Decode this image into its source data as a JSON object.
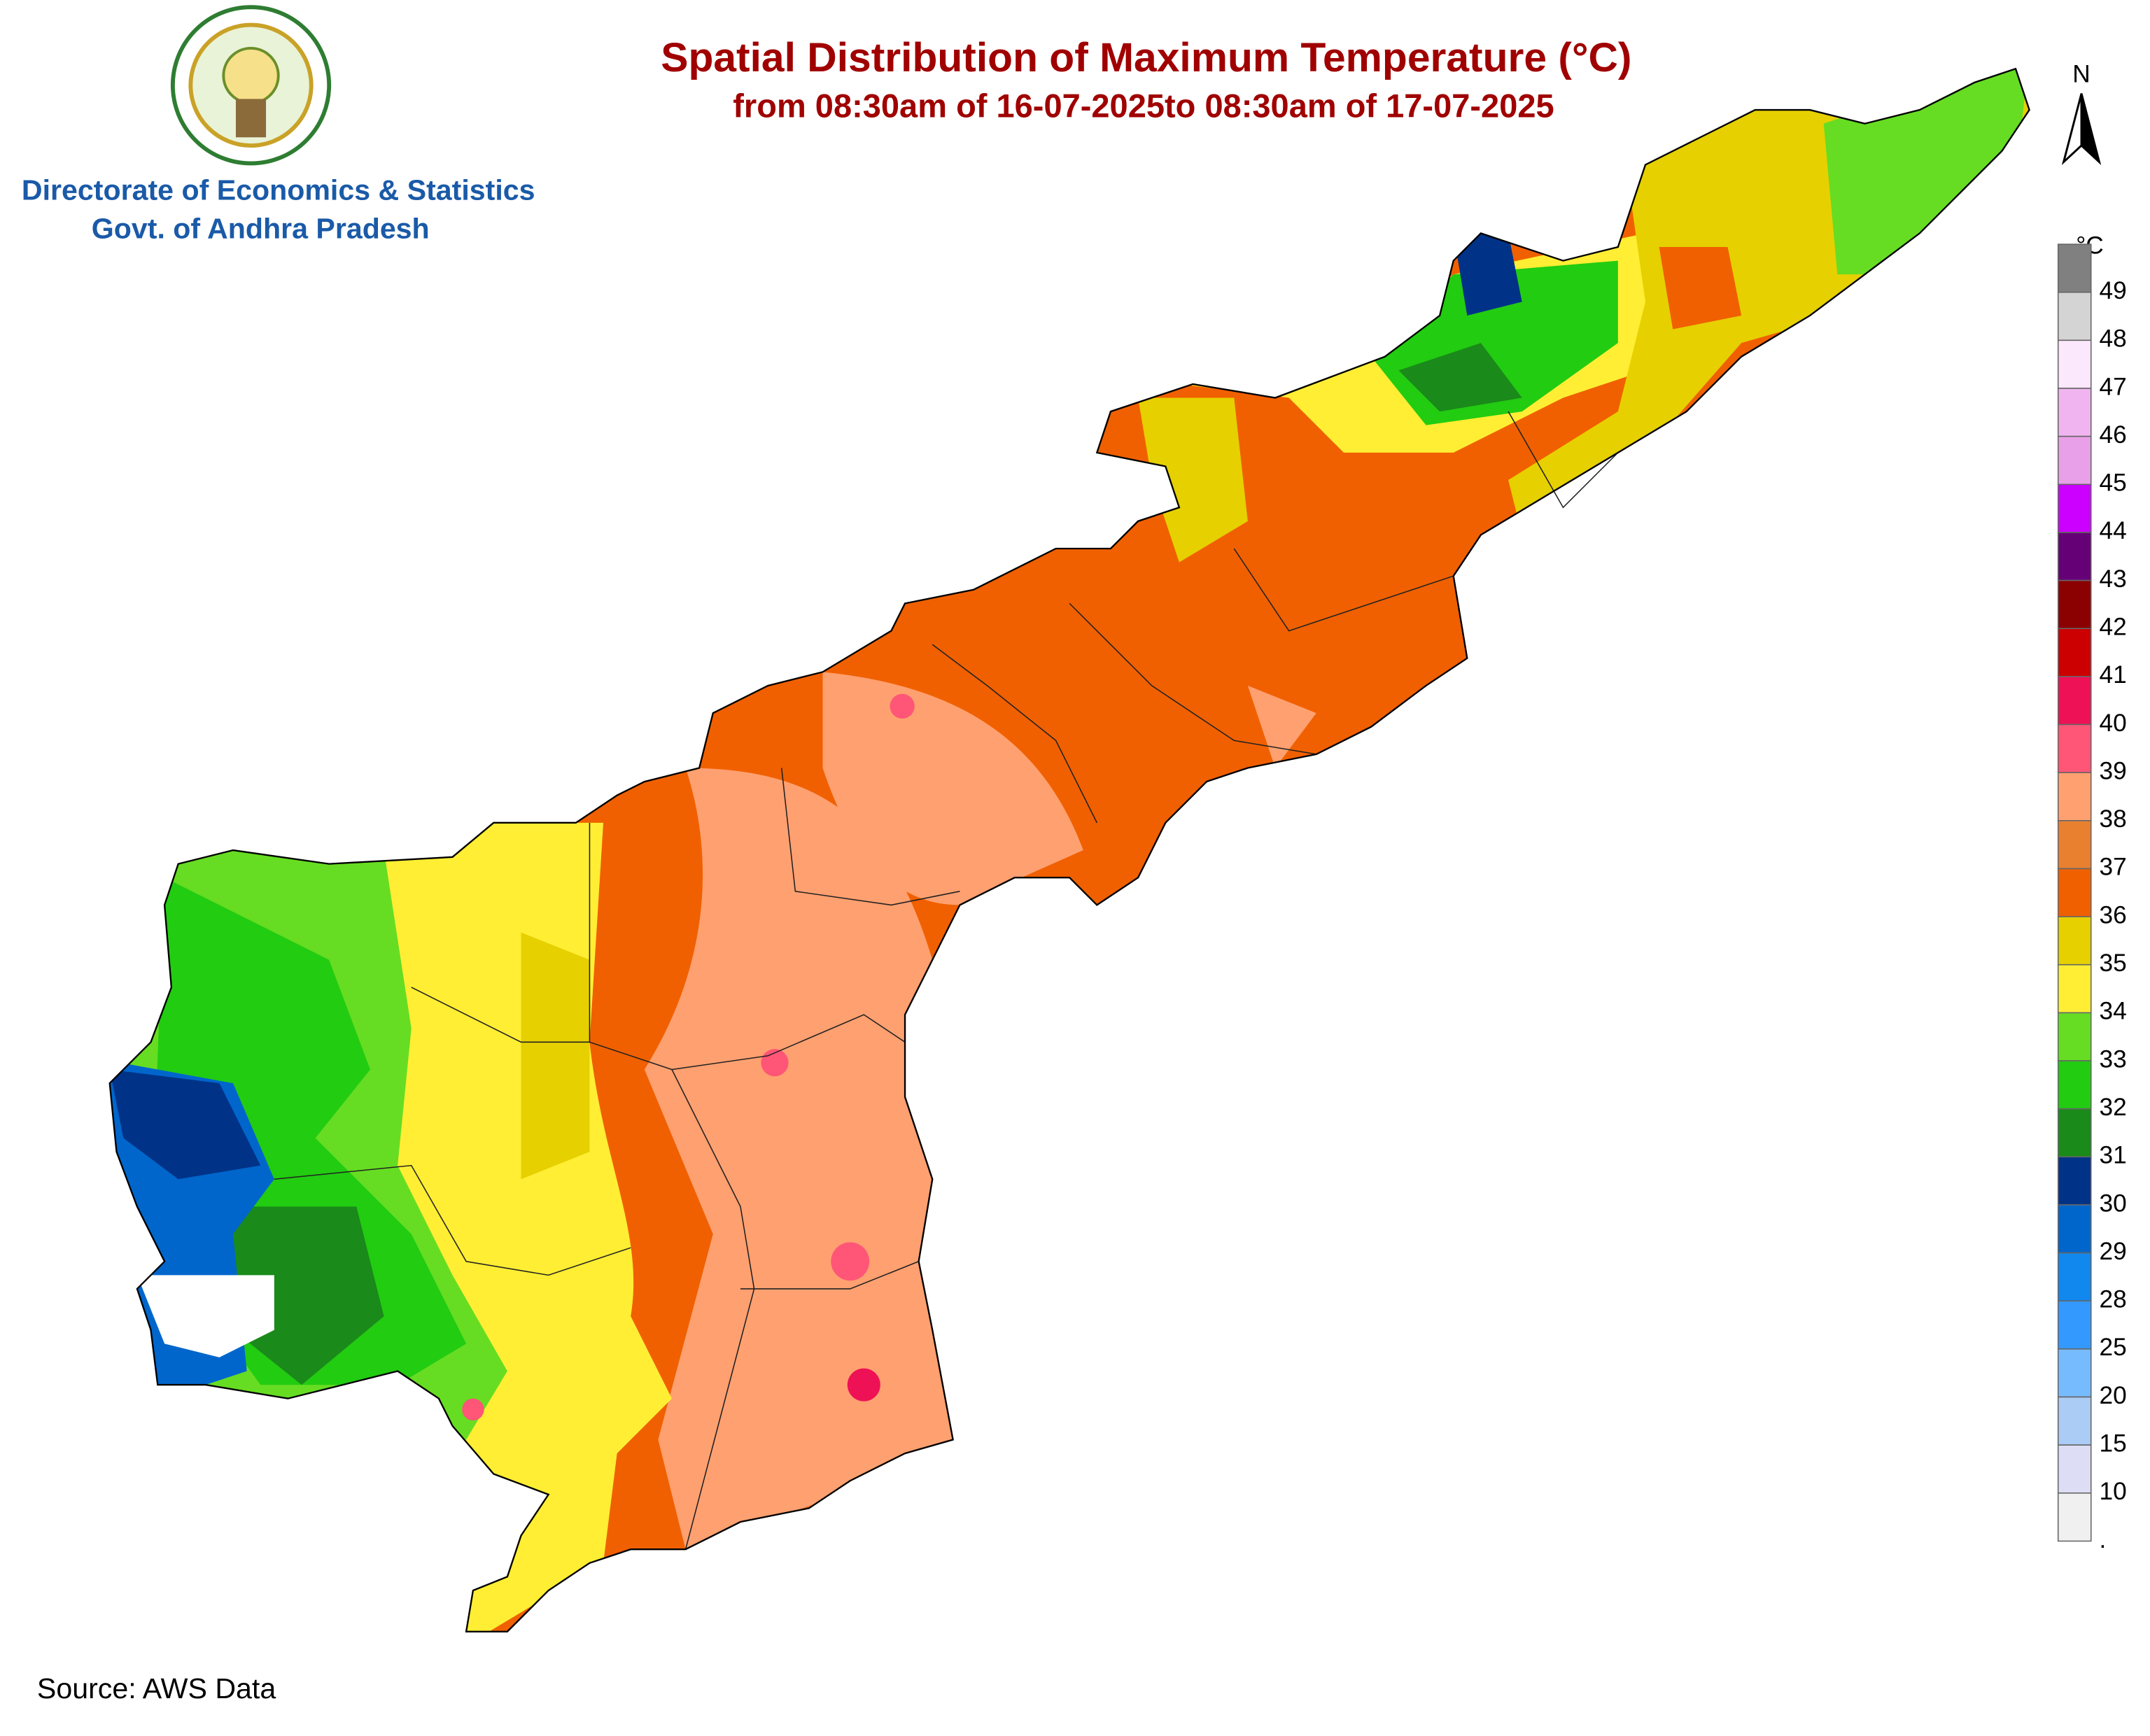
{
  "header": {
    "title": "Spatial Distribution of Maximum Temperature (°C)",
    "subtitle": "from 08:30am of 16-07-2025to 08:30am of 17-07-2025",
    "org_line1": "Directorate of Economics & Statistics",
    "org_line2": "Govt. of Andhra Pradesh"
  },
  "north": "N",
  "source": "Source: AWS Data",
  "legend": {
    "unit": "°C",
    "items": [
      {
        "label": 49,
        "color": "#808080"
      },
      {
        "label": 48,
        "color": "#d4d4d4"
      },
      {
        "label": 47,
        "color": "#fce8fc"
      },
      {
        "label": 46,
        "color": "#f0b4f0"
      },
      {
        "label": 45,
        "color": "#e8a0e8"
      },
      {
        "label": 44,
        "color": "#cc00ff"
      },
      {
        "label": 43,
        "color": "#660077"
      },
      {
        "label": 42,
        "color": "#8b0000"
      },
      {
        "label": 41,
        "color": "#cc0000"
      },
      {
        "label": 40,
        "color": "#ee1155"
      },
      {
        "label": 39,
        "color": "#ff5577"
      },
      {
        "label": 38,
        "color": "#ffa070"
      },
      {
        "label": 37,
        "color": "#e88030"
      },
      {
        "label": 36,
        "color": "#f06000"
      },
      {
        "label": 35,
        "color": "#e6d000"
      },
      {
        "label": 34,
        "color": "#ffee33"
      },
      {
        "label": 33,
        "color": "#66dd22"
      },
      {
        "label": 32,
        "color": "#22cc11"
      },
      {
        "label": 31,
        "color": "#1a8a1a"
      },
      {
        "label": 30,
        "color": "#003388"
      },
      {
        "label": 29,
        "color": "#0066cc"
      },
      {
        "label": 28,
        "color": "#1188ee"
      },
      {
        "label": 25,
        "color": "#3399ff"
      },
      {
        "label": 20,
        "color": "#77bbff"
      },
      {
        "label": 15,
        "color": "#aaccf5"
      },
      {
        "label": 10,
        "color": "#ddddf5"
      },
      {
        "label": ".",
        "color": "#f0f0f0"
      }
    ]
  }
}
